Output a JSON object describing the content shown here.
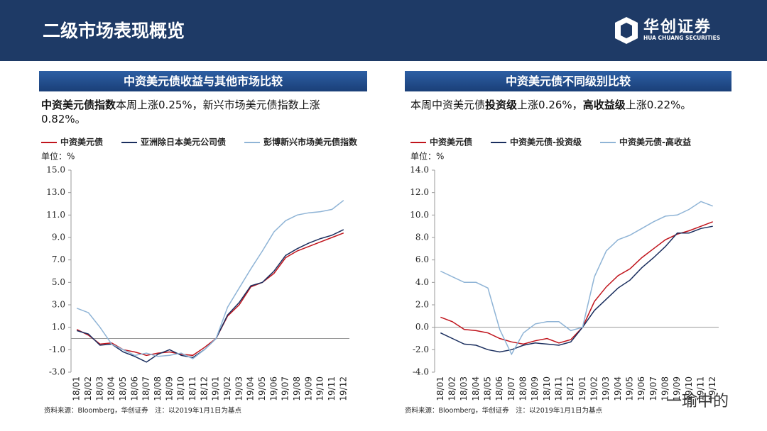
{
  "header": {
    "title": "二级市场表现概览",
    "logo_cn": "华创证券",
    "logo_en": "HUA CHUANG SECURITIES"
  },
  "watermark": "一瑜中的",
  "chart_data": [
    {
      "type": "line",
      "title": "中资美元债收益与其他市场比较",
      "description": [
        {
          "text": "中资美元债指数",
          "bold": true
        },
        {
          "text": "本周上涨0.25%，新兴市场美元债指数上涨0.82%。",
          "bold": false
        }
      ],
      "unit": "单位：%",
      "note": "资料来源：Bloomberg，华创证券　注：以2019年1月1日为基点",
      "categories": [
        "18/01",
        "18/02",
        "18/03",
        "18/04",
        "18/05",
        "18/06",
        "18/07",
        "18/08",
        "18/09",
        "18/10",
        "18/11",
        "18/12",
        "19/01",
        "19/02",
        "19/03",
        "19/04",
        "19/05",
        "19/06",
        "19/07",
        "19/08",
        "19/09",
        "19/10",
        "19/11",
        "19/12"
      ],
      "series": [
        {
          "name": "中资美元债",
          "color": "#c0141c",
          "values": [
            0.8,
            0.3,
            -0.5,
            -0.4,
            -1.0,
            -1.2,
            -1.5,
            -1.3,
            -1.2,
            -1.4,
            -1.5,
            -0.8,
            0,
            2.0,
            3.0,
            4.6,
            5.0,
            5.8,
            7.2,
            7.8,
            8.2,
            8.6,
            9.0,
            9.4
          ]
        },
        {
          "name": "亚洲除日本美元公司债",
          "color": "#1a2e5e",
          "values": [
            0.7,
            0.4,
            -0.6,
            -0.5,
            -1.2,
            -1.6,
            -2.1,
            -1.4,
            -1.0,
            -1.5,
            -1.7,
            -1.0,
            0,
            2.1,
            3.2,
            4.7,
            5.0,
            6.0,
            7.4,
            8.0,
            8.5,
            8.9,
            9.2,
            9.7
          ]
        },
        {
          "name": "彭博新兴市场美元债指数",
          "color": "#8fb4d6",
          "values": [
            2.7,
            2.3,
            1.0,
            -0.5,
            -1.0,
            -1.5,
            -1.3,
            -1.6,
            -1.5,
            -1.3,
            -1.8,
            -1.0,
            0,
            2.8,
            4.5,
            6.2,
            7.8,
            9.5,
            10.5,
            11.0,
            11.2,
            11.3,
            11.5,
            12.3
          ]
        }
      ],
      "ylim": [
        -3,
        15
      ],
      "yticks": [
        {
          "value": -3,
          "label": "-3.0"
        },
        {
          "value": -1,
          "label": "-1.0"
        },
        {
          "value": 1,
          "label": "1.0"
        },
        {
          "value": 3,
          "label": "3.0"
        },
        {
          "value": 5,
          "label": "5.0"
        },
        {
          "value": 7,
          "label": "7.0"
        },
        {
          "value": 9,
          "label": "9.0"
        },
        {
          "value": 11,
          "label": "11.0"
        },
        {
          "value": 13,
          "label": "13.0"
        },
        {
          "value": 15,
          "label": "15.0"
        }
      ]
    },
    {
      "type": "line",
      "title": "中资美元债不同级别比较",
      "description": [
        {
          "text": "本周中资美元债",
          "bold": false
        },
        {
          "text": "投资级",
          "bold": true
        },
        {
          "text": "上涨0.26%，",
          "bold": false
        },
        {
          "text": "高收益级",
          "bold": true
        },
        {
          "text": "上涨0.22%。",
          "bold": false
        }
      ],
      "unit": "单位：%",
      "note": "资料来源：Bloomberg，华创证券　注：以2019年1月1日为基点",
      "categories": [
        "18/01",
        "18/02",
        "18/03",
        "18/04",
        "18/05",
        "18/06",
        "18/07",
        "18/08",
        "18/09",
        "18/10",
        "18/11",
        "18/12",
        "19/01",
        "19/02",
        "19/03",
        "19/04",
        "19/05",
        "19/06",
        "19/07",
        "19/08",
        "19/09",
        "19/10",
        "19/11",
        "19/12"
      ],
      "series": [
        {
          "name": "中资美元债",
          "color": "#c0141c",
          "values": [
            0.9,
            0.5,
            -0.2,
            -0.3,
            -0.5,
            -1.0,
            -1.3,
            -1.5,
            -1.2,
            -1.0,
            -1.4,
            -1.1,
            0,
            2.3,
            3.6,
            4.6,
            5.2,
            6.2,
            7.0,
            7.8,
            8.3,
            8.6,
            9.0,
            9.4
          ]
        },
        {
          "name": "中资美元债-投资级",
          "color": "#1a2e5e",
          "values": [
            -0.5,
            -1.0,
            -1.5,
            -1.6,
            -2.0,
            -2.2,
            -2.0,
            -1.6,
            -1.4,
            -1.5,
            -1.6,
            -1.3,
            0,
            1.5,
            2.5,
            3.5,
            4.2,
            5.3,
            6.2,
            7.2,
            8.4,
            8.4,
            8.8,
            9.0
          ]
        },
        {
          "name": "中资美元债-高收益",
          "color": "#8fb4d6",
          "values": [
            5.0,
            4.5,
            4.0,
            4.0,
            3.5,
            -0.2,
            -2.4,
            -0.5,
            0.3,
            0.5,
            0.5,
            -0.3,
            0,
            4.5,
            6.8,
            7.8,
            8.2,
            8.8,
            9.4,
            9.9,
            10.0,
            10.5,
            11.2,
            10.8
          ]
        }
      ],
      "ylim": [
        -4,
        14
      ],
      "yticks": [
        {
          "value": -4,
          "label": "-4.0"
        },
        {
          "value": -2,
          "label": "-2.0"
        },
        {
          "value": 0,
          "label": "0.0"
        },
        {
          "value": 2,
          "label": "2.0"
        },
        {
          "value": 4,
          "label": "4.0"
        },
        {
          "value": 6,
          "label": "6.0"
        },
        {
          "value": 8,
          "label": "8.0"
        },
        {
          "value": 10,
          "label": "10.0"
        },
        {
          "value": 12,
          "label": "12.0"
        },
        {
          "value": 14,
          "label": "14.0"
        }
      ]
    }
  ]
}
